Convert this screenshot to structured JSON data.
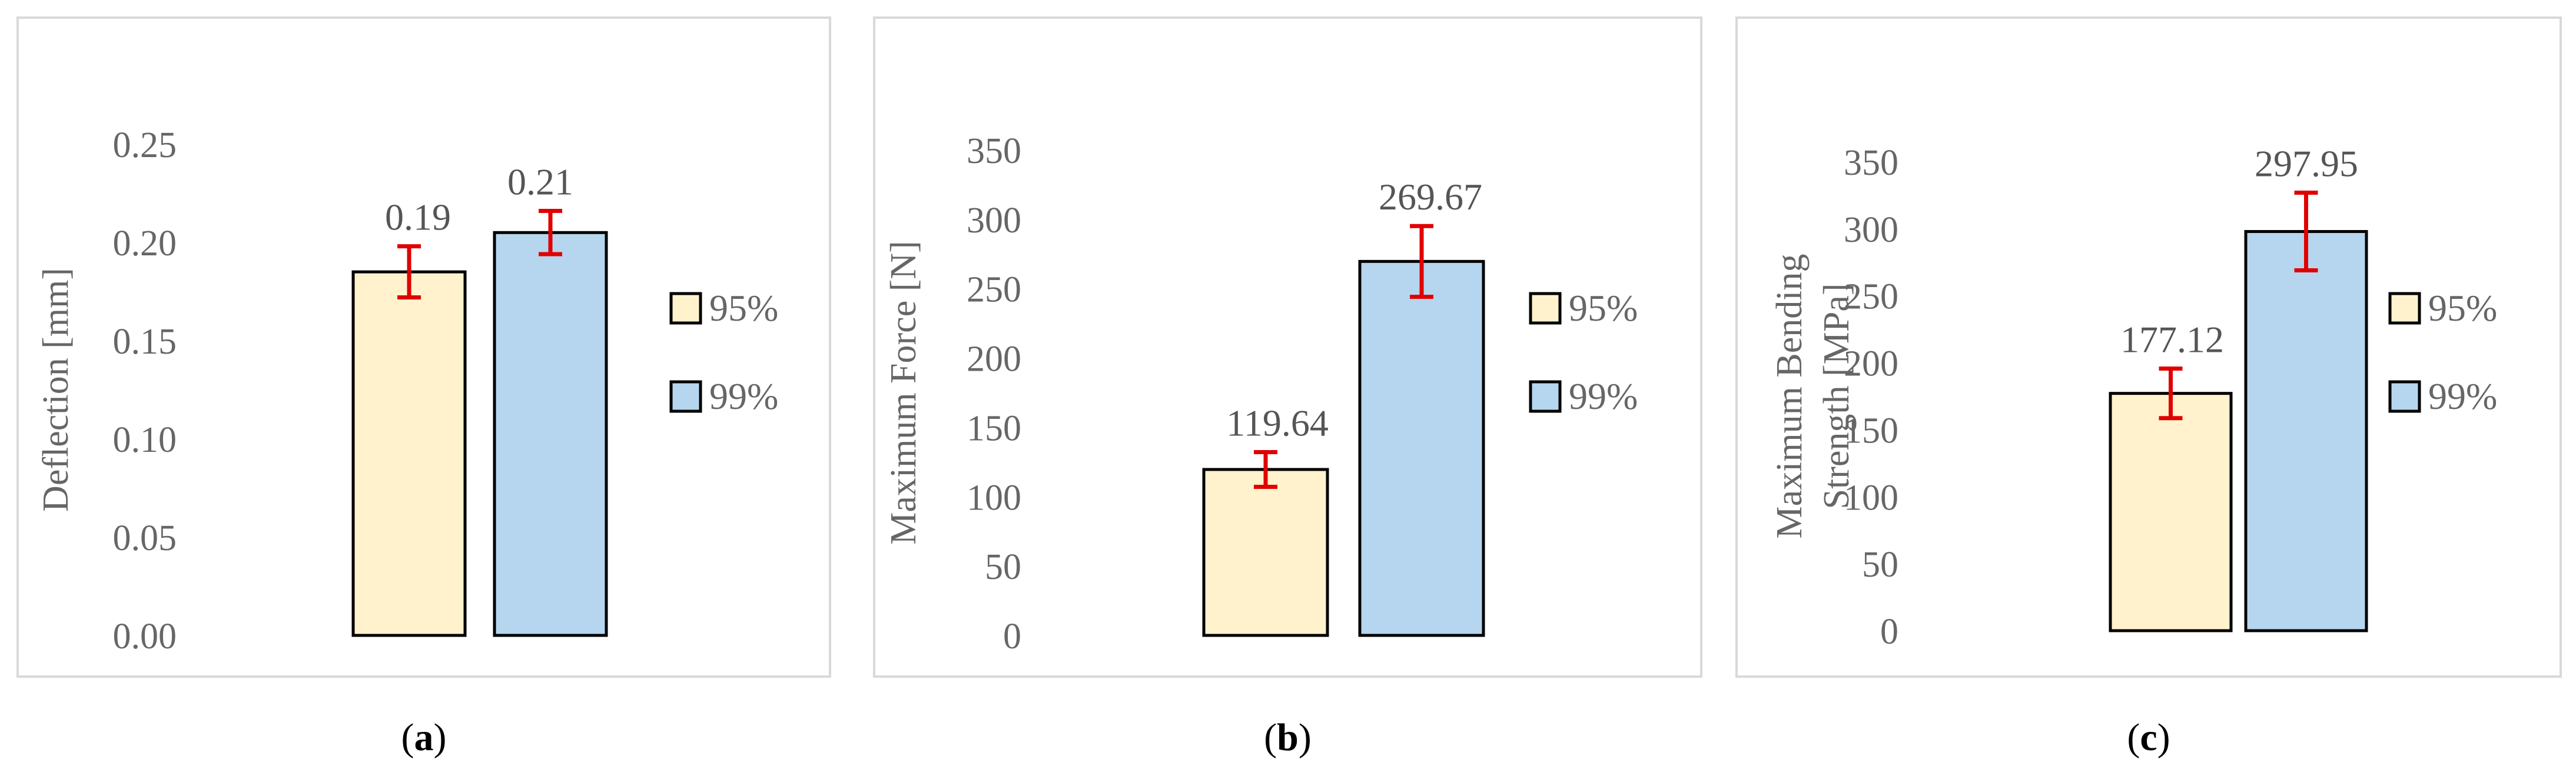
{
  "colors": {
    "series_95": "#fff2cc",
    "series_99": "#b5d6ee",
    "bar_outline": "#000000",
    "error_bar": "#e00000",
    "axis_text": "#666666",
    "panel_border": "#d9d9d9"
  },
  "chart_data": [
    {
      "type": "bar",
      "panel_label": "a",
      "ylabel": "Deflection [mm]",
      "ylim": [
        0,
        0.25
      ],
      "yticks": [
        "0.00",
        "0.05",
        "0.10",
        "0.15",
        "0.20",
        "0.25"
      ],
      "grid": false,
      "legend_position": "right",
      "series": [
        {
          "name": "95%",
          "values": [
            0.185
          ],
          "error": [
            0.013
          ],
          "label": "0.19"
        },
        {
          "name": "99%",
          "values": [
            0.205
          ],
          "error": [
            0.011
          ],
          "label": "0.21"
        }
      ]
    },
    {
      "type": "bar",
      "panel_label": "b",
      "ylabel": "Maximum Force [N]",
      "ylim": [
        0,
        350
      ],
      "yticks": [
        "0",
        "50",
        "100",
        "150",
        "200",
        "250",
        "300",
        "350"
      ],
      "grid": false,
      "legend_position": "right",
      "series": [
        {
          "name": "95%",
          "values": [
            119.64
          ],
          "error": [
            12.5
          ],
          "label": "119.64"
        },
        {
          "name": "99%",
          "values": [
            269.67
          ],
          "error": [
            25.5
          ],
          "label": "269.67"
        }
      ]
    },
    {
      "type": "bar",
      "panel_label": "c",
      "ylabel": "Maximum Bending Strength [MPa]",
      "ylabel_lines": [
        "Maximum Bending",
        "Strength [MPa]"
      ],
      "ylim": [
        0,
        350
      ],
      "yticks": [
        "0",
        "50",
        "100",
        "150",
        "200",
        "250",
        "300",
        "350"
      ],
      "grid": false,
      "legend_position": "right",
      "series": [
        {
          "name": "95%",
          "values": [
            177.12
          ],
          "error": [
            18.5
          ],
          "label": "177.12"
        },
        {
          "name": "99%",
          "values": [
            297.95
          ],
          "error": [
            29.0
          ],
          "label": "297.95"
        }
      ]
    }
  ]
}
